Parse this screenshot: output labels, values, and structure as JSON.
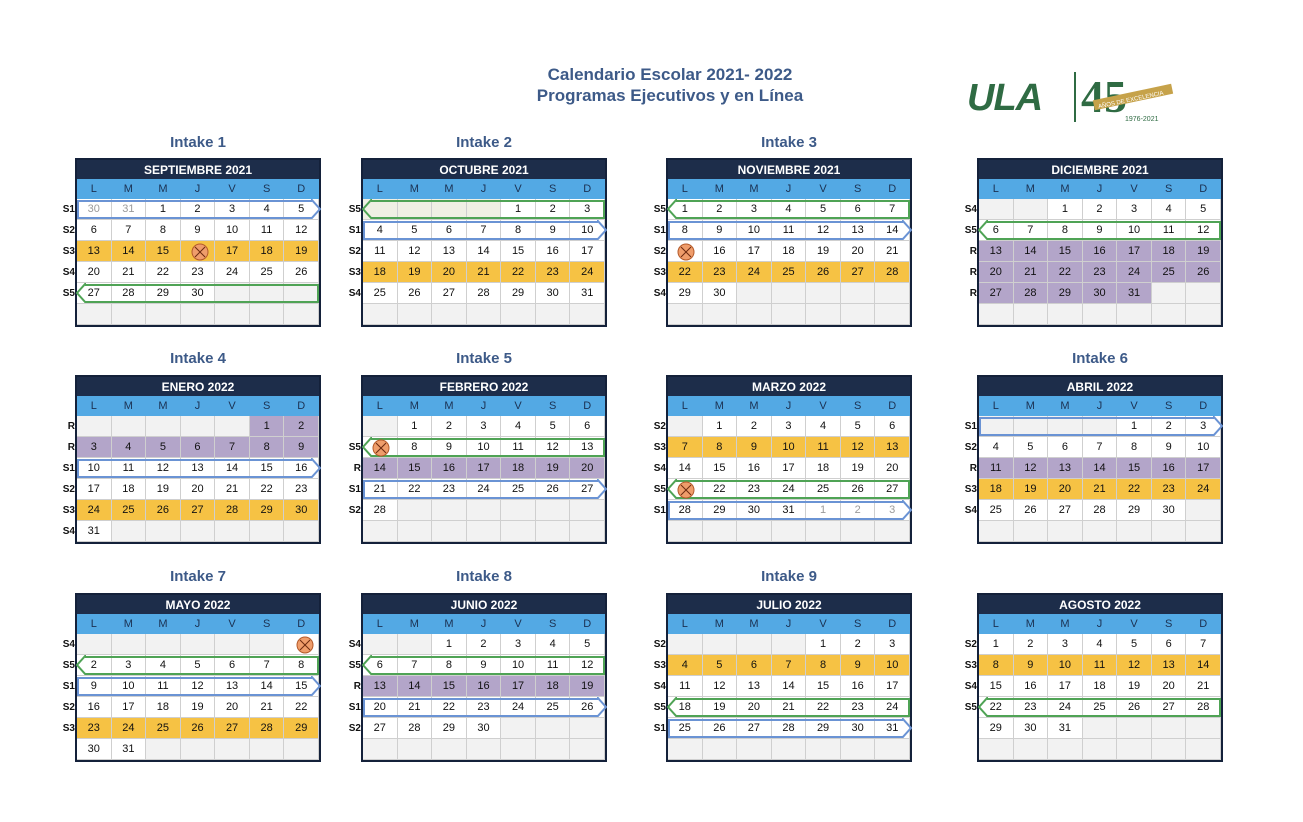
{
  "title_line1": "Calendario Escolar 2021- 2022",
  "title_line2": "Programas Ejecutivos y en Línea",
  "logo": {
    "text": "ULA",
    "number": "45",
    "motto": "AÑOS DE EXCELENCIA",
    "years": "1976-2021"
  },
  "dow": [
    "L",
    "M",
    "M",
    "J",
    "V",
    "S",
    "D"
  ],
  "colors": {
    "navy": "#1d2d4a",
    "sky": "#53a9e4",
    "yellow": "#f6c244",
    "purple": "#b3a5c9",
    "blue_bar": "#6a93d4",
    "green_bar": "#4fa355",
    "holiday": "#ef9d6b"
  },
  "intakes": [
    {
      "label": "Intake 1",
      "cal": 0
    },
    {
      "label": "Intake 2",
      "cal": 1
    },
    {
      "label": "Intake 3",
      "cal": 2
    },
    {
      "label": "Intake 4",
      "cal": 4
    },
    {
      "label": "Intake 5",
      "cal": 5
    },
    {
      "label": "Intake 6",
      "cal": 7
    },
    {
      "label": "Intake 7",
      "cal": 8
    },
    {
      "label": "Intake 8",
      "cal": 9
    },
    {
      "label": "Intake 9",
      "cal": 10
    }
  ],
  "calendars": [
    {
      "month": "SEPTIEMBRE 2021",
      "rows": [
        {
          "label": "S1",
          "cells": [
            "30",
            "31",
            "1",
            "2",
            "3",
            "4",
            "5"
          ],
          "cls": "oo.....",
          "bar": "b"
        },
        {
          "label": "S2",
          "cells": [
            "6",
            "7",
            "8",
            "9",
            "10",
            "11",
            "12"
          ],
          "cls": "......."
        },
        {
          "label": "S3",
          "cells": [
            "13",
            "14",
            "15",
            "",
            "17",
            "18",
            "19"
          ],
          "cls": "yyyyyyy",
          "hol": 3
        },
        {
          "label": "S4",
          "cells": [
            "20",
            "21",
            "22",
            "23",
            "24",
            "25",
            "26"
          ],
          "cls": "......."
        },
        {
          "label": "S5",
          "cells": [
            "27",
            "28",
            "29",
            "30",
            "",
            "",
            ""
          ],
          "cls": "....eee",
          "bar": "g"
        },
        {
          "label": "",
          "cells": [
            "",
            "",
            "",
            "",
            "",
            "",
            ""
          ],
          "cls": "eeeeeee"
        }
      ]
    },
    {
      "month": "OCTUBRE 2021",
      "rows": [
        {
          "label": "S5",
          "cells": [
            "",
            "",
            "",
            "",
            "1",
            "2",
            "3"
          ],
          "cls": "gggg...",
          "bar": "g"
        },
        {
          "label": "S1",
          "cells": [
            "4",
            "5",
            "6",
            "7",
            "8",
            "9",
            "10"
          ],
          "cls": ".......",
          "bar": "b"
        },
        {
          "label": "S2",
          "cells": [
            "11",
            "12",
            "13",
            "14",
            "15",
            "16",
            "17"
          ],
          "cls": "......."
        },
        {
          "label": "S3",
          "cells": [
            "18",
            "19",
            "20",
            "21",
            "22",
            "23",
            "24"
          ],
          "cls": "yyyyyyy"
        },
        {
          "label": "S4",
          "cells": [
            "25",
            "26",
            "27",
            "28",
            "29",
            "30",
            "31"
          ],
          "cls": "......."
        },
        {
          "label": "",
          "cells": [
            "",
            "",
            "",
            "",
            "",
            "",
            ""
          ],
          "cls": "eeeeeee"
        }
      ]
    },
    {
      "month": "NOVIEMBRE 2021",
      "rows": [
        {
          "label": "S5",
          "cells": [
            "1",
            "2",
            "3",
            "4",
            "5",
            "6",
            "7"
          ],
          "cls": ".......",
          "bar": "g"
        },
        {
          "label": "S1",
          "cells": [
            "8",
            "9",
            "10",
            "11",
            "12",
            "13",
            "14"
          ],
          "cls": ".......",
          "bar": "b"
        },
        {
          "label": "S2",
          "cells": [
            "",
            "16",
            "17",
            "18",
            "19",
            "20",
            "21"
          ],
          "cls": ".......",
          "hol": 0
        },
        {
          "label": "S3",
          "cells": [
            "22",
            "23",
            "24",
            "25",
            "26",
            "27",
            "28"
          ],
          "cls": "yyyyyyy"
        },
        {
          "label": "S4",
          "cells": [
            "29",
            "30",
            "",
            "",
            "",
            "",
            ""
          ],
          "cls": "..eeeee"
        },
        {
          "label": "",
          "cells": [
            "",
            "",
            "",
            "",
            "",
            "",
            ""
          ],
          "cls": "eeeeeee"
        }
      ]
    },
    {
      "month": "DICIEMBRE 2021",
      "rows": [
        {
          "label": "S4",
          "cells": [
            "",
            "",
            "1",
            "2",
            "3",
            "4",
            "5"
          ],
          "cls": "ee....."
        },
        {
          "label": "S5",
          "cells": [
            "6",
            "7",
            "8",
            "9",
            "10",
            "11",
            "12"
          ],
          "cls": ".......",
          "bar": "g"
        },
        {
          "label": "R",
          "cells": [
            "13",
            "14",
            "15",
            "16",
            "17",
            "18",
            "19"
          ],
          "cls": "ppppppp"
        },
        {
          "label": "R",
          "cells": [
            "20",
            "21",
            "22",
            "23",
            "24",
            "25",
            "26"
          ],
          "cls": "ppppppp"
        },
        {
          "label": "R",
          "cells": [
            "27",
            "28",
            "29",
            "30",
            "31",
            "",
            ""
          ],
          "cls": "pppppee"
        },
        {
          "label": "",
          "cells": [
            "",
            "",
            "",
            "",
            "",
            "",
            ""
          ],
          "cls": "eeeeeee"
        }
      ]
    },
    {
      "month": "ENERO 2022",
      "rows": [
        {
          "label": "R",
          "cells": [
            "",
            "",
            "",
            "",
            "",
            "1",
            "2"
          ],
          "cls": "eeeeepp"
        },
        {
          "label": "R",
          "cells": [
            "3",
            "4",
            "5",
            "6",
            "7",
            "8",
            "9"
          ],
          "cls": "ppppppp"
        },
        {
          "label": "S1",
          "cells": [
            "10",
            "11",
            "12",
            "13",
            "14",
            "15",
            "16"
          ],
          "cls": ".......",
          "bar": "b"
        },
        {
          "label": "S2",
          "cells": [
            "17",
            "18",
            "19",
            "20",
            "21",
            "22",
            "23"
          ],
          "cls": "......."
        },
        {
          "label": "S3",
          "cells": [
            "24",
            "25",
            "26",
            "27",
            "28",
            "29",
            "30"
          ],
          "cls": "yyyyyyy"
        },
        {
          "label": "S4",
          "cells": [
            "31",
            "",
            "",
            "",
            "",
            "",
            ""
          ],
          "cls": ".eeeeee"
        }
      ]
    },
    {
      "month": "FEBRERO 2022",
      "rows": [
        {
          "label": "",
          "cells": [
            "",
            "1",
            "2",
            "3",
            "4",
            "5",
            "6"
          ],
          "cls": "e......"
        },
        {
          "label": "S5",
          "cells": [
            "",
            "8",
            "9",
            "10",
            "11",
            "12",
            "13"
          ],
          "cls": ".......",
          "bar": "g",
          "hol": 0
        },
        {
          "label": "R",
          "cells": [
            "14",
            "15",
            "16",
            "17",
            "18",
            "19",
            "20"
          ],
          "cls": "ppppppp"
        },
        {
          "label": "S1",
          "cells": [
            "21",
            "22",
            "23",
            "24",
            "25",
            "26",
            "27"
          ],
          "cls": ".......",
          "bar": "b"
        },
        {
          "label": "S2",
          "cells": [
            "28",
            "",
            "",
            "",
            "",
            "",
            ""
          ],
          "cls": ".eeeeee"
        },
        {
          "label": "",
          "cells": [
            "",
            "",
            "",
            "",
            "",
            "",
            ""
          ],
          "cls": "eeeeeee"
        }
      ]
    },
    {
      "month": "MARZO 2022",
      "rows": [
        {
          "label": "S2",
          "cells": [
            "",
            "1",
            "2",
            "3",
            "4",
            "5",
            "6"
          ],
          "cls": "e......"
        },
        {
          "label": "S3",
          "cells": [
            "7",
            "8",
            "9",
            "10",
            "11",
            "12",
            "13"
          ],
          "cls": "yyyyyyy"
        },
        {
          "label": "S4",
          "cells": [
            "14",
            "15",
            "16",
            "17",
            "18",
            "19",
            "20"
          ],
          "cls": "......."
        },
        {
          "label": "S5",
          "cells": [
            "",
            "22",
            "23",
            "24",
            "25",
            "26",
            "27"
          ],
          "cls": ".......",
          "bar": "g",
          "hol": 0
        },
        {
          "label": "S1",
          "cells": [
            "28",
            "29",
            "30",
            "31",
            "1",
            "2",
            "3"
          ],
          "cls": "....ooo",
          "bar": "b"
        },
        {
          "label": "",
          "cells": [
            "",
            "",
            "",
            "",
            "",
            "",
            ""
          ],
          "cls": "eeeeeee"
        }
      ]
    },
    {
      "month": "ABRIL 2022",
      "rows": [
        {
          "label": "S1",
          "cells": [
            "",
            "",
            "",
            "",
            "1",
            "2",
            "3"
          ],
          "cls": "eeee...",
          "bar": "b"
        },
        {
          "label": "S2",
          "cells": [
            "4",
            "5",
            "6",
            "7",
            "8",
            "9",
            "10"
          ],
          "cls": "......."
        },
        {
          "label": "R",
          "cells": [
            "11",
            "12",
            "13",
            "14",
            "15",
            "16",
            "17"
          ],
          "cls": "ppppppp"
        },
        {
          "label": "S3",
          "cells": [
            "18",
            "19",
            "20",
            "21",
            "22",
            "23",
            "24"
          ],
          "cls": "yyyyyyy"
        },
        {
          "label": "S4",
          "cells": [
            "25",
            "26",
            "27",
            "28",
            "29",
            "30",
            ""
          ],
          "cls": "......e"
        },
        {
          "label": "",
          "cells": [
            "",
            "",
            "",
            "",
            "",
            "",
            ""
          ],
          "cls": "eeeeeee"
        }
      ]
    },
    {
      "month": "MAYO 2022",
      "rows": [
        {
          "label": "S4",
          "cells": [
            "",
            "",
            "",
            "",
            "",
            "",
            ""
          ],
          "cls": "eeeeee.",
          "hol": 6
        },
        {
          "label": "S5",
          "cells": [
            "2",
            "3",
            "4",
            "5",
            "6",
            "7",
            "8"
          ],
          "cls": ".......",
          "bar": "g"
        },
        {
          "label": "S1",
          "cells": [
            "9",
            "10",
            "11",
            "12",
            "13",
            "14",
            "15"
          ],
          "cls": ".......",
          "bar": "b"
        },
        {
          "label": "S2",
          "cells": [
            "16",
            "17",
            "18",
            "19",
            "20",
            "21",
            "22"
          ],
          "cls": "......."
        },
        {
          "label": "S3",
          "cells": [
            "23",
            "24",
            "25",
            "26",
            "27",
            "28",
            "29"
          ],
          "cls": "yyyyyyy"
        },
        {
          "label": "",
          "cells": [
            "30",
            "31",
            "",
            "",
            "",
            "",
            ""
          ],
          "cls": "..eeeee"
        }
      ]
    },
    {
      "month": "JUNIO 2022",
      "rows": [
        {
          "label": "S4",
          "cells": [
            "",
            "",
            "1",
            "2",
            "3",
            "4",
            "5"
          ],
          "cls": "ee....."
        },
        {
          "label": "S5",
          "cells": [
            "6",
            "7",
            "8",
            "9",
            "10",
            "11",
            "12"
          ],
          "cls": ".......",
          "bar": "g"
        },
        {
          "label": "R",
          "cells": [
            "13",
            "14",
            "15",
            "16",
            "17",
            "18",
            "19"
          ],
          "cls": "ppppppp"
        },
        {
          "label": "S1",
          "cells": [
            "20",
            "21",
            "22",
            "23",
            "24",
            "25",
            "26"
          ],
          "cls": ".......",
          "bar": "b"
        },
        {
          "label": "S2",
          "cells": [
            "27",
            "28",
            "29",
            "30",
            "",
            "",
            ""
          ],
          "cls": "....eee"
        },
        {
          "label": "",
          "cells": [
            "",
            "",
            "",
            "",
            "",
            "",
            ""
          ],
          "cls": "eeeeeee"
        }
      ]
    },
    {
      "month": "JULIO 2022",
      "rows": [
        {
          "label": "S2",
          "cells": [
            "",
            "",
            "",
            "",
            "1",
            "2",
            "3"
          ],
          "cls": "eeee..."
        },
        {
          "label": "S3",
          "cells": [
            "4",
            "5",
            "6",
            "7",
            "8",
            "9",
            "10"
          ],
          "cls": "yyyyyyy"
        },
        {
          "label": "S4",
          "cells": [
            "11",
            "12",
            "13",
            "14",
            "15",
            "16",
            "17"
          ],
          "cls": "......."
        },
        {
          "label": "S5",
          "cells": [
            "18",
            "19",
            "20",
            "21",
            "22",
            "23",
            "24"
          ],
          "cls": ".......",
          "bar": "g"
        },
        {
          "label": "S1",
          "cells": [
            "25",
            "26",
            "27",
            "28",
            "29",
            "30",
            "31"
          ],
          "cls": ".......",
          "bar": "b"
        },
        {
          "label": "",
          "cells": [
            "",
            "",
            "",
            "",
            "",
            "",
            ""
          ],
          "cls": "eeeeeee"
        }
      ]
    },
    {
      "month": "AGOSTO 2022",
      "rows": [
        {
          "label": "S2",
          "cells": [
            "1",
            "2",
            "3",
            "4",
            "5",
            "6",
            "7"
          ],
          "cls": "......."
        },
        {
          "label": "S3",
          "cells": [
            "8",
            "9",
            "10",
            "11",
            "12",
            "13",
            "14"
          ],
          "cls": "yyyyyyy"
        },
        {
          "label": "S4",
          "cells": [
            "15",
            "16",
            "17",
            "18",
            "19",
            "20",
            "21"
          ],
          "cls": "......."
        },
        {
          "label": "S5",
          "cells": [
            "22",
            "23",
            "24",
            "25",
            "26",
            "27",
            "28"
          ],
          "cls": ".......",
          "bar": "g"
        },
        {
          "label": "",
          "cells": [
            "29",
            "30",
            "31",
            "",
            "",
            "",
            ""
          ],
          "cls": "...eeee"
        },
        {
          "label": "",
          "cells": [
            "",
            "",
            "",
            "",
            "",
            "",
            ""
          ],
          "cls": "eeeeeee"
        }
      ]
    }
  ]
}
